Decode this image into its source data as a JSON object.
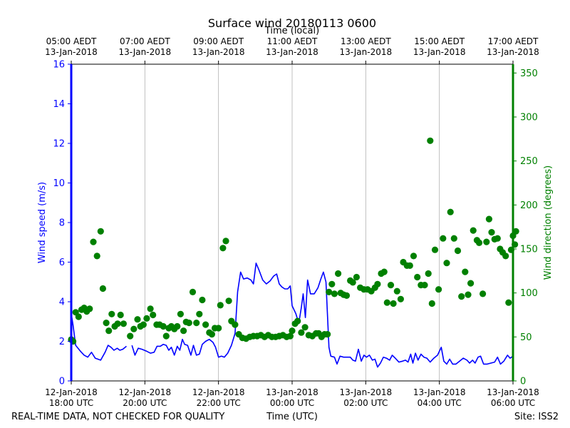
{
  "chart_data": {
    "type": "line+scatter",
    "title": "Surface wind 20180113 0600",
    "top_axis_label": "Time (local)",
    "xlabel": "Time (UTC)",
    "footer_left": "REAL-TIME DATA, NOT CHECKED FOR QUALITY",
    "footer_right": "Site: ISS2",
    "colors": {
      "speed": "#0000ff",
      "direction": "#008000",
      "grid": "#b0b0b0"
    },
    "x_range_hours": [
      18.0,
      30.0
    ],
    "bottom_ticks": [
      {
        "h": 18,
        "line1": "12-Jan-2018",
        "line2": "18:00 UTC"
      },
      {
        "h": 20,
        "line1": "12-Jan-2018",
        "line2": "20:00 UTC"
      },
      {
        "h": 22,
        "line1": "12-Jan-2018",
        "line2": "22:00 UTC"
      },
      {
        "h": 24,
        "line1": "13-Jan-2018",
        "line2": "00:00 UTC"
      },
      {
        "h": 26,
        "line1": "13-Jan-2018",
        "line2": "02:00 UTC"
      },
      {
        "h": 28,
        "line1": "13-Jan-2018",
        "line2": "04:00 UTC"
      },
      {
        "h": 30,
        "line1": "13-Jan-2018",
        "line2": "06:00 UTC"
      }
    ],
    "top_ticks": [
      {
        "h": 18,
        "line1": "05:00 AEDT",
        "line2": "13-Jan-2018"
      },
      {
        "h": 20,
        "line1": "07:00 AEDT",
        "line2": "13-Jan-2018"
      },
      {
        "h": 22,
        "line1": "09:00 AEDT",
        "line2": "13-Jan-2018"
      },
      {
        "h": 24,
        "line1": "11:00 AEDT",
        "line2": "13-Jan-2018"
      },
      {
        "h": 26,
        "line1": "13:00 AEDT",
        "line2": "13-Jan-2018"
      },
      {
        "h": 28,
        "line1": "15:00 AEDT",
        "line2": "13-Jan-2018"
      },
      {
        "h": 30,
        "line1": "17:00 AEDT",
        "line2": "13-Jan-2018"
      }
    ],
    "left_axis": {
      "label": "Wind speed (m/s)",
      "ylim": [
        0,
        16
      ],
      "ticks": [
        0,
        2,
        4,
        6,
        8,
        10,
        12,
        14,
        16
      ]
    },
    "right_axis": {
      "label": "Wind direction (degrees)",
      "ylim": [
        0,
        360
      ],
      "ticks": [
        0,
        50,
        100,
        150,
        200,
        250,
        300,
        350
      ]
    },
    "speed_series": {
      "name": "Wind speed",
      "segments": [
        [
          [
            18.0,
            3.4
          ],
          [
            18.05,
            2.8
          ],
          [
            18.12,
            1.8
          ],
          [
            18.25,
            1.5
          ],
          [
            18.35,
            1.3
          ],
          [
            18.45,
            1.2
          ],
          [
            18.55,
            1.45
          ],
          [
            18.65,
            1.15
          ],
          [
            18.8,
            1.05
          ],
          [
            18.92,
            1.45
          ],
          [
            19.0,
            1.8
          ],
          [
            19.08,
            1.7
          ],
          [
            19.16,
            1.55
          ],
          [
            19.25,
            1.65
          ],
          [
            19.32,
            1.55
          ],
          [
            19.4,
            1.6
          ],
          [
            19.5,
            1.75
          ]
        ],
        [
          [
            19.65,
            1.8
          ],
          [
            19.73,
            1.3
          ],
          [
            19.82,
            1.65
          ],
          [
            19.92,
            1.6
          ],
          [
            20.05,
            1.5
          ],
          [
            20.15,
            1.4
          ],
          [
            20.25,
            1.45
          ],
          [
            20.33,
            1.75
          ],
          [
            20.42,
            1.75
          ],
          [
            20.5,
            1.85
          ],
          [
            20.58,
            1.8
          ],
          [
            20.65,
            1.55
          ],
          [
            20.72,
            1.7
          ],
          [
            20.8,
            1.3
          ],
          [
            20.88,
            1.75
          ],
          [
            20.95,
            1.55
          ],
          [
            21.02,
            2.1
          ],
          [
            21.08,
            1.85
          ],
          [
            21.16,
            1.8
          ],
          [
            21.25,
            1.3
          ],
          [
            21.32,
            1.8
          ],
          [
            21.4,
            1.3
          ],
          [
            21.48,
            1.35
          ],
          [
            21.56,
            1.85
          ],
          [
            21.65,
            2.0
          ],
          [
            21.75,
            2.1
          ],
          [
            21.85,
            1.95
          ],
          [
            21.92,
            1.7
          ],
          [
            22.0,
            1.2
          ],
          [
            22.08,
            1.25
          ],
          [
            22.16,
            1.2
          ],
          [
            22.25,
            1.4
          ],
          [
            22.35,
            1.8
          ],
          [
            22.45,
            2.4
          ],
          [
            22.52,
            4.5
          ],
          [
            22.6,
            5.5
          ],
          [
            22.68,
            5.15
          ],
          [
            22.78,
            5.2
          ],
          [
            22.88,
            5.1
          ],
          [
            22.95,
            4.9
          ],
          [
            23.02,
            5.95
          ],
          [
            23.1,
            5.6
          ],
          [
            23.2,
            5.1
          ],
          [
            23.3,
            4.9
          ],
          [
            23.4,
            5.05
          ],
          [
            23.5,
            5.3
          ],
          [
            23.58,
            5.4
          ],
          [
            23.65,
            4.9
          ],
          [
            23.72,
            4.75
          ],
          [
            23.8,
            4.65
          ],
          [
            23.88,
            4.65
          ],
          [
            23.95,
            4.8
          ],
          [
            24.0,
            3.8
          ],
          [
            24.1,
            3.4
          ],
          [
            24.18,
            2.9
          ],
          [
            24.25,
            3.7
          ],
          [
            24.3,
            4.4
          ],
          [
            24.36,
            3.2
          ],
          [
            24.42,
            5.1
          ],
          [
            24.5,
            4.4
          ],
          [
            24.6,
            4.4
          ],
          [
            24.7,
            4.7
          ],
          [
            24.78,
            5.15
          ],
          [
            24.85,
            5.5
          ],
          [
            24.92,
            5.0
          ],
          [
            25.0,
            1.7
          ],
          [
            25.05,
            1.25
          ],
          [
            25.15,
            1.2
          ],
          [
            25.22,
            0.85
          ],
          [
            25.3,
            1.25
          ],
          [
            25.4,
            1.2
          ],
          [
            25.5,
            1.2
          ],
          [
            25.58,
            1.2
          ],
          [
            25.65,
            1.05
          ],
          [
            25.72,
            1.0
          ],
          [
            25.8,
            1.6
          ],
          [
            25.88,
            1.0
          ],
          [
            25.95,
            1.3
          ],
          [
            26.02,
            1.2
          ],
          [
            26.1,
            1.3
          ],
          [
            26.18,
            1.05
          ],
          [
            26.25,
            1.1
          ],
          [
            26.32,
            0.7
          ],
          [
            26.4,
            0.9
          ],
          [
            26.48,
            1.2
          ],
          [
            26.56,
            1.15
          ],
          [
            26.65,
            1.05
          ],
          [
            26.72,
            1.3
          ],
          [
            26.8,
            1.15
          ],
          [
            26.9,
            0.95
          ],
          [
            27.0,
            1.0
          ],
          [
            27.08,
            1.05
          ],
          [
            27.15,
            0.95
          ],
          [
            27.22,
            1.35
          ],
          [
            27.28,
            0.9
          ],
          [
            27.35,
            1.4
          ],
          [
            27.42,
            1.05
          ],
          [
            27.5,
            1.35
          ],
          [
            27.58,
            1.2
          ],
          [
            27.66,
            1.15
          ],
          [
            27.75,
            0.95
          ],
          [
            27.85,
            1.15
          ],
          [
            27.95,
            1.3
          ],
          [
            28.05,
            1.7
          ],
          [
            28.12,
            1.0
          ],
          [
            28.2,
            0.85
          ],
          [
            28.28,
            1.1
          ],
          [
            28.36,
            0.85
          ],
          [
            28.45,
            0.85
          ],
          [
            28.55,
            1.0
          ],
          [
            28.65,
            1.15
          ],
          [
            28.75,
            1.05
          ],
          [
            28.82,
            0.9
          ],
          [
            28.9,
            1.05
          ],
          [
            28.97,
            0.9
          ],
          [
            29.05,
            1.2
          ],
          [
            29.12,
            1.25
          ],
          [
            29.2,
            0.85
          ],
          [
            29.3,
            0.85
          ],
          [
            29.4,
            0.9
          ],
          [
            29.5,
            0.95
          ],
          [
            29.58,
            1.2
          ],
          [
            29.66,
            0.85
          ],
          [
            29.75,
            1.0
          ],
          [
            29.85,
            1.3
          ],
          [
            29.92,
            1.15
          ],
          [
            30.0,
            1.25
          ]
        ]
      ]
    },
    "direction_series": {
      "name": "Wind direction",
      "points": [
        [
          18.0,
          47
        ],
        [
          18.05,
          45
        ],
        [
          18.12,
          78
        ],
        [
          18.2,
          73
        ],
        [
          18.28,
          81
        ],
        [
          18.35,
          83
        ],
        [
          18.42,
          79
        ],
        [
          18.5,
          82
        ],
        [
          18.6,
          158
        ],
        [
          18.7,
          142
        ],
        [
          18.8,
          170
        ],
        [
          18.86,
          105
        ],
        [
          18.95,
          66
        ],
        [
          19.02,
          57
        ],
        [
          19.1,
          76
        ],
        [
          19.18,
          62
        ],
        [
          19.26,
          65
        ],
        [
          19.34,
          75
        ],
        [
          19.42,
          65
        ],
        [
          19.6,
          51
        ],
        [
          19.7,
          59
        ],
        [
          19.8,
          70
        ],
        [
          19.88,
          62
        ],
        [
          19.96,
          64
        ],
        [
          20.05,
          71
        ],
        [
          20.15,
          82
        ],
        [
          20.22,
          75
        ],
        [
          20.32,
          64
        ],
        [
          20.4,
          64
        ],
        [
          20.5,
          62
        ],
        [
          20.58,
          51
        ],
        [
          20.65,
          60
        ],
        [
          20.72,
          62
        ],
        [
          20.8,
          59
        ],
        [
          20.88,
          62
        ],
        [
          20.97,
          76
        ],
        [
          21.05,
          57
        ],
        [
          21.12,
          67
        ],
        [
          21.2,
          66
        ],
        [
          21.3,
          101
        ],
        [
          21.4,
          66
        ],
        [
          21.48,
          76
        ],
        [
          21.56,
          92
        ],
        [
          21.65,
          64
        ],
        [
          21.75,
          55
        ],
        [
          21.82,
          53
        ],
        [
          21.9,
          60
        ],
        [
          22.0,
          60
        ],
        [
          22.05,
          86
        ],
        [
          22.12,
          151
        ],
        [
          22.2,
          159
        ],
        [
          22.28,
          91
        ],
        [
          22.35,
          68
        ],
        [
          22.45,
          64
        ],
        [
          22.55,
          53
        ],
        [
          22.65,
          49
        ],
        [
          22.75,
          48
        ],
        [
          22.85,
          50
        ],
        [
          22.95,
          51
        ],
        [
          23.05,
          51
        ],
        [
          23.15,
          52
        ],
        [
          23.25,
          50
        ],
        [
          23.35,
          52
        ],
        [
          23.45,
          50
        ],
        [
          23.55,
          50
        ],
        [
          23.65,
          51
        ],
        [
          23.75,
          52
        ],
        [
          23.85,
          50
        ],
        [
          23.95,
          51
        ],
        [
          24.0,
          57
        ],
        [
          24.08,
          65
        ],
        [
          24.15,
          68
        ],
        [
          24.25,
          55
        ],
        [
          24.35,
          61
        ],
        [
          24.45,
          52
        ],
        [
          24.55,
          51
        ],
        [
          24.65,
          54
        ],
        [
          24.72,
          54
        ],
        [
          24.8,
          50
        ],
        [
          24.88,
          53
        ],
        [
          24.96,
          53
        ],
        [
          25.0,
          101
        ],
        [
          25.08,
          110
        ],
        [
          25.15,
          99
        ],
        [
          25.25,
          122
        ],
        [
          25.32,
          100
        ],
        [
          25.4,
          98
        ],
        [
          25.48,
          97
        ],
        [
          25.58,
          114
        ],
        [
          25.65,
          112
        ],
        [
          25.75,
          118
        ],
        [
          25.85,
          106
        ],
        [
          25.95,
          104
        ],
        [
          26.05,
          104
        ],
        [
          26.15,
          102
        ],
        [
          26.25,
          106
        ],
        [
          26.32,
          110
        ],
        [
          26.42,
          122
        ],
        [
          26.5,
          124
        ],
        [
          26.58,
          89
        ],
        [
          26.68,
          109
        ],
        [
          26.75,
          88
        ],
        [
          26.85,
          102
        ],
        [
          26.95,
          93
        ],
        [
          27.02,
          135
        ],
        [
          27.12,
          131
        ],
        [
          27.2,
          131
        ],
        [
          27.3,
          142
        ],
        [
          27.4,
          118
        ],
        [
          27.5,
          109
        ],
        [
          27.6,
          109
        ],
        [
          27.7,
          122
        ],
        [
          27.8,
          88
        ],
        [
          27.88,
          149
        ],
        [
          27.98,
          104
        ],
        [
          28.1,
          162
        ],
        [
          28.2,
          134
        ],
        [
          28.3,
          192
        ],
        [
          28.4,
          162
        ],
        [
          28.5,
          148
        ],
        [
          28.6,
          96
        ],
        [
          28.7,
          124
        ],
        [
          28.78,
          98
        ],
        [
          28.85,
          111
        ],
        [
          28.92,
          171
        ],
        [
          29.02,
          160
        ],
        [
          29.08,
          157
        ],
        [
          29.18,
          99
        ],
        [
          29.28,
          158
        ],
        [
          29.35,
          184
        ],
        [
          29.42,
          169
        ],
        [
          29.5,
          161
        ],
        [
          29.58,
          162
        ],
        [
          29.65,
          150
        ],
        [
          29.72,
          146
        ],
        [
          29.8,
          142
        ],
        [
          29.88,
          89
        ],
        [
          29.95,
          149
        ],
        [
          30.0,
          165
        ],
        [
          30.05,
          155
        ],
        [
          30.08,
          170
        ],
        [
          27.75,
          273
        ]
      ]
    }
  }
}
